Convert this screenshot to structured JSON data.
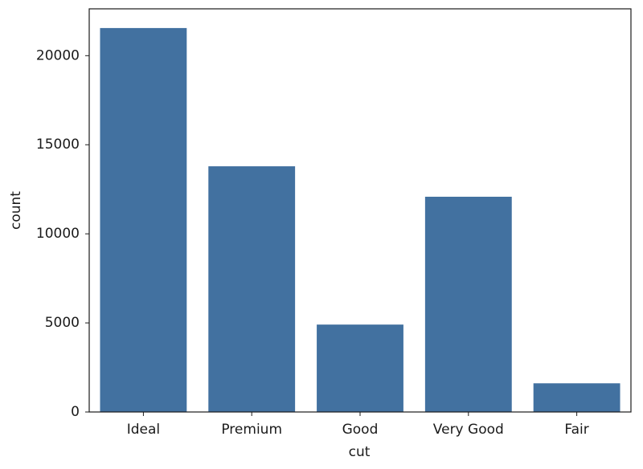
{
  "chart_data": {
    "type": "bar",
    "xlabel": "cut",
    "ylabel": "count",
    "categories": [
      "Ideal",
      "Premium",
      "Good",
      "Very Good",
      "Fair"
    ],
    "values": [
      21551,
      13791,
      4906,
      12082,
      1610
    ],
    "color": "#4271a0",
    "ylim": [
      0,
      22629
    ],
    "yticks": [
      0,
      5000,
      10000,
      15000,
      20000
    ],
    "grid": false
  }
}
